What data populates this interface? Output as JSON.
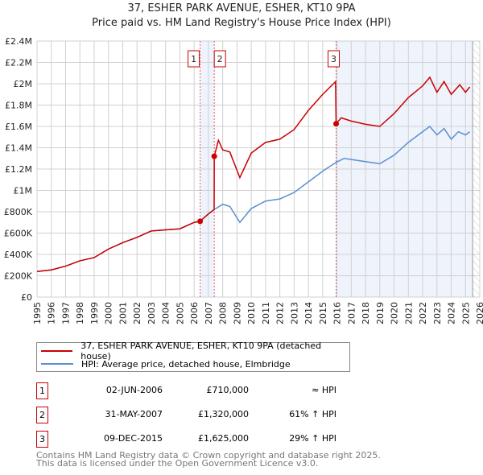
{
  "title": "37, ESHER PARK AVENUE, ESHER, KT10 9PA",
  "subtitle": "Price paid vs. HM Land Registry's House Price Index (HPI)",
  "chart_data": {
    "type": "line",
    "xlim": [
      1995,
      2026
    ],
    "ylim": [
      0,
      2400000
    ],
    "x_ticks": [
      1995,
      1996,
      1997,
      1998,
      1999,
      2000,
      2001,
      2002,
      2003,
      2004,
      2005,
      2006,
      2007,
      2008,
      2009,
      2010,
      2011,
      2012,
      2013,
      2014,
      2015,
      2016,
      2017,
      2018,
      2019,
      2020,
      2021,
      2022,
      2023,
      2024,
      2025,
      2026
    ],
    "y_ticks": [
      {
        "v": 0,
        "label": "£0"
      },
      {
        "v": 200000,
        "label": "£200K"
      },
      {
        "v": 400000,
        "label": "£400K"
      },
      {
        "v": 600000,
        "label": "£600K"
      },
      {
        "v": 800000,
        "label": "£800K"
      },
      {
        "v": 1000000,
        "label": "£1M"
      },
      {
        "v": 1200000,
        "label": "£1.2M"
      },
      {
        "v": 1400000,
        "label": "£1.4M"
      },
      {
        "v": 1600000,
        "label": "£1.6M"
      },
      {
        "v": 1800000,
        "label": "£1.8M"
      },
      {
        "v": 2000000,
        "label": "£2M"
      },
      {
        "v": 2200000,
        "label": "£2.2M"
      },
      {
        "v": 2400000,
        "label": "£2.4M"
      }
    ],
    "grid": true,
    "series": [
      {
        "name": "37, ESHER PARK AVENUE, ESHER, KT10 9PA (detached house)",
        "color": "#cc0000",
        "x": [
          1995,
          1996,
          1997,
          1998,
          1999,
          2000,
          2001,
          2002,
          2003,
          2004,
          2005,
          2006,
          2006.42,
          2007,
          2007.4,
          2007.41,
          2007.7,
          2008,
          2008.5,
          2009.2,
          2010,
          2011,
          2012,
          2013,
          2014,
          2015,
          2015.9,
          2015.94,
          2016.3,
          2017,
          2018,
          2019,
          2020,
          2021,
          2022,
          2022.5,
          2023,
          2023.5,
          2024,
          2024.6,
          2025,
          2025.3
        ],
        "y": [
          240000,
          255000,
          290000,
          340000,
          370000,
          450000,
          510000,
          560000,
          620000,
          630000,
          640000,
          700000,
          710000,
          780000,
          820000,
          1320000,
          1470000,
          1380000,
          1360000,
          1120000,
          1350000,
          1450000,
          1480000,
          1570000,
          1750000,
          1900000,
          2020000,
          1625000,
          1680000,
          1650000,
          1620000,
          1600000,
          1720000,
          1870000,
          1980000,
          2060000,
          1920000,
          2020000,
          1900000,
          1990000,
          1920000,
          1970000
        ]
      },
      {
        "name": "HPI: Average price, detached house, Elmbridge",
        "color": "#5b8fd0",
        "x": [
          1995,
          1996,
          1997,
          1998,
          1999,
          2000,
          2001,
          2002,
          2003,
          2004,
          2005,
          2006,
          2006.42,
          2007,
          2007.4,
          2008,
          2008.5,
          2009.2,
          2010,
          2011,
          2012,
          2013,
          2014,
          2015,
          2015.9,
          2016.5,
          2017,
          2018,
          2019,
          2020,
          2021,
          2022,
          2022.5,
          2023,
          2023.5,
          2024,
          2024.5,
          2025,
          2025.3
        ],
        "y": [
          240000,
          255000,
          290000,
          340000,
          370000,
          450000,
          510000,
          560000,
          620000,
          630000,
          640000,
          700000,
          710000,
          780000,
          820000,
          870000,
          850000,
          700000,
          830000,
          900000,
          920000,
          980000,
          1080000,
          1180000,
          1260000,
          1300000,
          1290000,
          1270000,
          1250000,
          1330000,
          1450000,
          1550000,
          1600000,
          1520000,
          1580000,
          1480000,
          1550000,
          1520000,
          1550000
        ]
      }
    ],
    "sales": [
      {
        "n": "1",
        "x": 2006.42,
        "price": 710000
      },
      {
        "n": "2",
        "x": 2007.41,
        "price": 1320000
      },
      {
        "n": "3",
        "x": 2015.94,
        "price": 1625000
      }
    ],
    "shaded_ranges": [
      [
        2006.42,
        2007.41
      ],
      [
        2015.94,
        2025.5
      ]
    ],
    "forecast_hatch_from": 2025.5,
    "legend_placement": "below"
  },
  "legend": {
    "property": "37, ESHER PARK AVENUE, ESHER, KT10 9PA (detached house)",
    "hpi": "HPI: Average price, detached house, Elmbridge"
  },
  "transactions": [
    {
      "n": "1",
      "date": "02-JUN-2006",
      "price": "£710,000",
      "vs_hpi": "≈ HPI"
    },
    {
      "n": "2",
      "date": "31-MAY-2007",
      "price": "£1,320,000",
      "vs_hpi": "61% ↑ HPI"
    },
    {
      "n": "3",
      "date": "09-DEC-2015",
      "price": "£1,625,000",
      "vs_hpi": "29% ↑ HPI"
    }
  ],
  "footer": {
    "line1": "Contains HM Land Registry data © Crown copyright and database right 2025.",
    "line2": "This data is licensed under the Open Government Licence v3.0."
  }
}
